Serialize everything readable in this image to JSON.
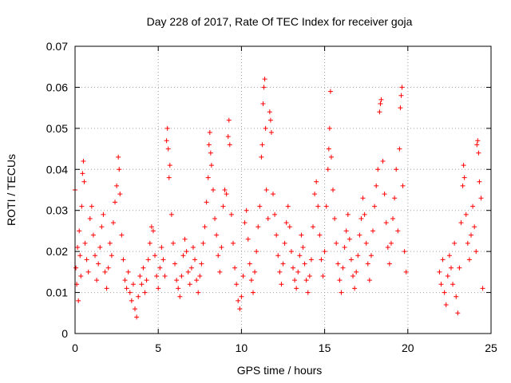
{
  "chart_data": {
    "type": "scatter",
    "title": "Day 228 of 2017, Rate Of TEC Index for receiver goja",
    "xlabel": "GPS time / hours",
    "ylabel": "ROTI / TECUs",
    "xlim": [
      0,
      25
    ],
    "ylim": [
      0,
      0.07
    ],
    "x_ticks": [
      0,
      5,
      10,
      15,
      20,
      25
    ],
    "x_tick_labels": [
      "0",
      "5",
      "10",
      "15",
      "20",
      "25"
    ],
    "y_ticks": [
      0,
      0.01,
      0.02,
      0.03,
      0.04,
      0.05,
      0.06,
      0.07
    ],
    "y_tick_labels": [
      "0",
      "0.01",
      "0.02",
      "0.03",
      "0.04",
      "0.05",
      "0.06",
      "0.07"
    ],
    "grid": true,
    "marker": "plus",
    "color": "#ff0000",
    "series": [
      {
        "points": [
          [
            0.0,
            0.035
          ],
          [
            0.05,
            0.016
          ],
          [
            0.1,
            0.012
          ],
          [
            0.15,
            0.021
          ],
          [
            0.2,
            0.008
          ],
          [
            0.25,
            0.025
          ],
          [
            0.3,
            0.019
          ],
          [
            0.35,
            0.014
          ],
          [
            0.4,
            0.031
          ],
          [
            0.45,
            0.039
          ],
          [
            0.5,
            0.042
          ],
          [
            0.55,
            0.037
          ],
          [
            0.6,
            0.022
          ],
          [
            0.7,
            0.018
          ],
          [
            0.8,
            0.015
          ],
          [
            0.9,
            0.028
          ],
          [
            1.0,
            0.031
          ],
          [
            1.1,
            0.024
          ],
          [
            1.2,
            0.019
          ],
          [
            1.3,
            0.013
          ],
          [
            1.4,
            0.017
          ],
          [
            1.5,
            0.021
          ],
          [
            1.6,
            0.026
          ],
          [
            1.7,
            0.029
          ],
          [
            1.8,
            0.015
          ],
          [
            1.9,
            0.011
          ],
          [
            2.0,
            0.016
          ],
          [
            2.1,
            0.022
          ],
          [
            2.2,
            0.019
          ],
          [
            2.3,
            0.027
          ],
          [
            2.4,
            0.032
          ],
          [
            2.5,
            0.036
          ],
          [
            2.6,
            0.043
          ],
          [
            2.65,
            0.04
          ],
          [
            2.7,
            0.034
          ],
          [
            2.8,
            0.024
          ],
          [
            2.9,
            0.018
          ],
          [
            3.0,
            0.013
          ],
          [
            3.1,
            0.011
          ],
          [
            3.2,
            0.015
          ],
          [
            3.3,
            0.01
          ],
          [
            3.4,
            0.008
          ],
          [
            3.5,
            0.012
          ],
          [
            3.6,
            0.006
          ],
          [
            3.7,
            0.004
          ],
          [
            3.8,
            0.009
          ],
          [
            3.9,
            0.014
          ],
          [
            4.0,
            0.012
          ],
          [
            4.1,
            0.016
          ],
          [
            4.2,
            0.01
          ],
          [
            4.3,
            0.013
          ],
          [
            4.4,
            0.018
          ],
          [
            4.5,
            0.022
          ],
          [
            4.6,
            0.026
          ],
          [
            4.7,
            0.025
          ],
          [
            4.8,
            0.019
          ],
          [
            4.9,
            0.014
          ],
          [
            5.0,
            0.011
          ],
          [
            5.1,
            0.016
          ],
          [
            5.2,
            0.021
          ],
          [
            5.3,
            0.018
          ],
          [
            5.4,
            0.014
          ],
          [
            5.5,
            0.047
          ],
          [
            5.55,
            0.05
          ],
          [
            5.6,
            0.045
          ],
          [
            5.65,
            0.038
          ],
          [
            5.7,
            0.041
          ],
          [
            5.8,
            0.029
          ],
          [
            5.9,
            0.022
          ],
          [
            6.0,
            0.017
          ],
          [
            6.1,
            0.013
          ],
          [
            6.2,
            0.011
          ],
          [
            6.3,
            0.009
          ],
          [
            6.4,
            0.014
          ],
          [
            6.5,
            0.019
          ],
          [
            6.6,
            0.023
          ],
          [
            6.7,
            0.02
          ],
          [
            6.8,
            0.015
          ],
          [
            6.9,
            0.012
          ],
          [
            7.0,
            0.016
          ],
          [
            7.1,
            0.021
          ],
          [
            7.2,
            0.018
          ],
          [
            7.3,
            0.013
          ],
          [
            7.4,
            0.01
          ],
          [
            7.5,
            0.014
          ],
          [
            7.6,
            0.017
          ],
          [
            7.7,
            0.022
          ],
          [
            7.8,
            0.026
          ],
          [
            7.9,
            0.032
          ],
          [
            8.0,
            0.038
          ],
          [
            8.05,
            0.046
          ],
          [
            8.1,
            0.049
          ],
          [
            8.15,
            0.044
          ],
          [
            8.2,
            0.041
          ],
          [
            8.3,
            0.035
          ],
          [
            8.4,
            0.028
          ],
          [
            8.5,
            0.024
          ],
          [
            8.6,
            0.019
          ],
          [
            8.7,
            0.015
          ],
          [
            8.8,
            0.021
          ],
          [
            8.9,
            0.031
          ],
          [
            9.0,
            0.035
          ],
          [
            9.1,
            0.034
          ],
          [
            9.2,
            0.048
          ],
          [
            9.25,
            0.052
          ],
          [
            9.3,
            0.046
          ],
          [
            9.4,
            0.029
          ],
          [
            9.5,
            0.022
          ],
          [
            9.6,
            0.016
          ],
          [
            9.7,
            0.012
          ],
          [
            9.8,
            0.008
          ],
          [
            9.9,
            0.006
          ],
          [
            10.0,
            0.009
          ],
          [
            10.1,
            0.014
          ],
          [
            10.2,
            0.027
          ],
          [
            10.3,
            0.03
          ],
          [
            10.4,
            0.023
          ],
          [
            10.5,
            0.017
          ],
          [
            10.6,
            0.013
          ],
          [
            10.7,
            0.01
          ],
          [
            10.8,
            0.015
          ],
          [
            10.9,
            0.02
          ],
          [
            11.0,
            0.026
          ],
          [
            11.1,
            0.031
          ],
          [
            11.2,
            0.043
          ],
          [
            11.25,
            0.046
          ],
          [
            11.3,
            0.056
          ],
          [
            11.35,
            0.06
          ],
          [
            11.4,
            0.062
          ],
          [
            11.45,
            0.05
          ],
          [
            11.5,
            0.035
          ],
          [
            11.6,
            0.028
          ],
          [
            11.7,
            0.054
          ],
          [
            11.75,
            0.052
          ],
          [
            11.8,
            0.049
          ],
          [
            11.9,
            0.034
          ],
          [
            12.0,
            0.029
          ],
          [
            12.1,
            0.024
          ],
          [
            12.2,
            0.019
          ],
          [
            12.3,
            0.015
          ],
          [
            12.4,
            0.012
          ],
          [
            12.5,
            0.017
          ],
          [
            12.6,
            0.022
          ],
          [
            12.7,
            0.027
          ],
          [
            12.8,
            0.031
          ],
          [
            12.9,
            0.026
          ],
          [
            13.0,
            0.02
          ],
          [
            13.1,
            0.016
          ],
          [
            13.2,
            0.013
          ],
          [
            13.3,
            0.011
          ],
          [
            13.4,
            0.015
          ],
          [
            13.5,
            0.019
          ],
          [
            13.6,
            0.024
          ],
          [
            13.7,
            0.021
          ],
          [
            13.8,
            0.017
          ],
          [
            13.9,
            0.013
          ],
          [
            14.0,
            0.01
          ],
          [
            14.1,
            0.014
          ],
          [
            14.2,
            0.018
          ],
          [
            14.3,
            0.026
          ],
          [
            14.4,
            0.034
          ],
          [
            14.5,
            0.037
          ],
          [
            14.6,
            0.031
          ],
          [
            14.7,
            0.024
          ],
          [
            14.8,
            0.018
          ],
          [
            14.9,
            0.014
          ],
          [
            15.0,
            0.02
          ],
          [
            15.1,
            0.031
          ],
          [
            15.2,
            0.04
          ],
          [
            15.25,
            0.045
          ],
          [
            15.3,
            0.05
          ],
          [
            15.35,
            0.059
          ],
          [
            15.4,
            0.043
          ],
          [
            15.5,
            0.035
          ],
          [
            15.6,
            0.028
          ],
          [
            15.7,
            0.022
          ],
          [
            15.8,
            0.017
          ],
          [
            15.9,
            0.013
          ],
          [
            16.0,
            0.01
          ],
          [
            16.1,
            0.016
          ],
          [
            16.2,
            0.021
          ],
          [
            16.3,
            0.025
          ],
          [
            16.4,
            0.029
          ],
          [
            16.5,
            0.023
          ],
          [
            16.6,
            0.018
          ],
          [
            16.7,
            0.014
          ],
          [
            16.8,
            0.011
          ],
          [
            16.9,
            0.015
          ],
          [
            17.0,
            0.019
          ],
          [
            17.1,
            0.024
          ],
          [
            17.2,
            0.028
          ],
          [
            17.3,
            0.033
          ],
          [
            17.4,
            0.029
          ],
          [
            17.5,
            0.022
          ],
          [
            17.6,
            0.017
          ],
          [
            17.7,
            0.013
          ],
          [
            17.8,
            0.019
          ],
          [
            17.9,
            0.025
          ],
          [
            18.0,
            0.031
          ],
          [
            18.1,
            0.036
          ],
          [
            18.2,
            0.04
          ],
          [
            18.3,
            0.054
          ],
          [
            18.35,
            0.056
          ],
          [
            18.4,
            0.057
          ],
          [
            18.5,
            0.042
          ],
          [
            18.6,
            0.034
          ],
          [
            18.7,
            0.027
          ],
          [
            18.8,
            0.021
          ],
          [
            18.9,
            0.017
          ],
          [
            19.0,
            0.022
          ],
          [
            19.1,
            0.028
          ],
          [
            19.2,
            0.033
          ],
          [
            19.3,
            0.04
          ],
          [
            19.4,
            0.025
          ],
          [
            19.5,
            0.045
          ],
          [
            19.55,
            0.055
          ],
          [
            19.6,
            0.058
          ],
          [
            19.65,
            0.06
          ],
          [
            19.7,
            0.036
          ],
          [
            19.8,
            0.02
          ],
          [
            19.9,
            0.015
          ],
          [
            21.9,
            0.015
          ],
          [
            22.0,
            0.012
          ],
          [
            22.1,
            0.018
          ],
          [
            22.2,
            0.01
          ],
          [
            22.3,
            0.007
          ],
          [
            22.4,
            0.014
          ],
          [
            22.5,
            0.019
          ],
          [
            22.6,
            0.016
          ],
          [
            22.7,
            0.012
          ],
          [
            22.8,
            0.022
          ],
          [
            22.9,
            0.009
          ],
          [
            23.0,
            0.005
          ],
          [
            23.1,
            0.016
          ],
          [
            23.2,
            0.027
          ],
          [
            23.3,
            0.036
          ],
          [
            23.35,
            0.041
          ],
          [
            23.4,
            0.038
          ],
          [
            23.5,
            0.029
          ],
          [
            23.6,
            0.022
          ],
          [
            23.7,
            0.018
          ],
          [
            23.8,
            0.024
          ],
          [
            23.9,
            0.031
          ],
          [
            24.0,
            0.026
          ],
          [
            24.1,
            0.02
          ],
          [
            24.15,
            0.046
          ],
          [
            24.2,
            0.047
          ],
          [
            24.25,
            0.044
          ],
          [
            24.3,
            0.037
          ],
          [
            24.4,
            0.033
          ],
          [
            24.5,
            0.011
          ]
        ]
      }
    ]
  }
}
